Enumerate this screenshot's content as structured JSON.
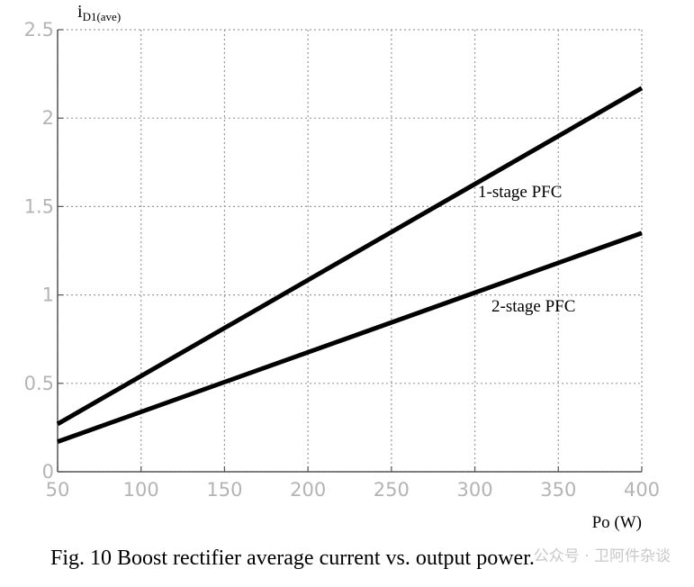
{
  "chart_data": {
    "type": "line",
    "ylabel_main": "i",
    "ylabel_sub": "D1(ave)",
    "xlabel": "Po (W)",
    "xlim": [
      50,
      400
    ],
    "ylim": [
      0,
      2.5
    ],
    "xticks": [
      50,
      100,
      150,
      200,
      250,
      300,
      350,
      400
    ],
    "yticks": [
      0,
      0.5,
      1,
      1.5,
      2,
      2.5
    ],
    "ytick_labels": [
      "0",
      "0.5",
      "1",
      "1.5",
      "2",
      "2.5"
    ],
    "grid": true,
    "series": [
      {
        "name": "1-stage PFC",
        "x": [
          50,
          400
        ],
        "y": [
          0.27,
          2.17
        ],
        "color": "#000000"
      },
      {
        "name": "2-stage PFC",
        "x": [
          50,
          400
        ],
        "y": [
          0.17,
          1.35
        ],
        "color": "#000000"
      }
    ]
  },
  "caption": "Fig. 10  Boost rectifier average current vs. output power.",
  "watermark": "公众号 · 卫阿件杂谈"
}
